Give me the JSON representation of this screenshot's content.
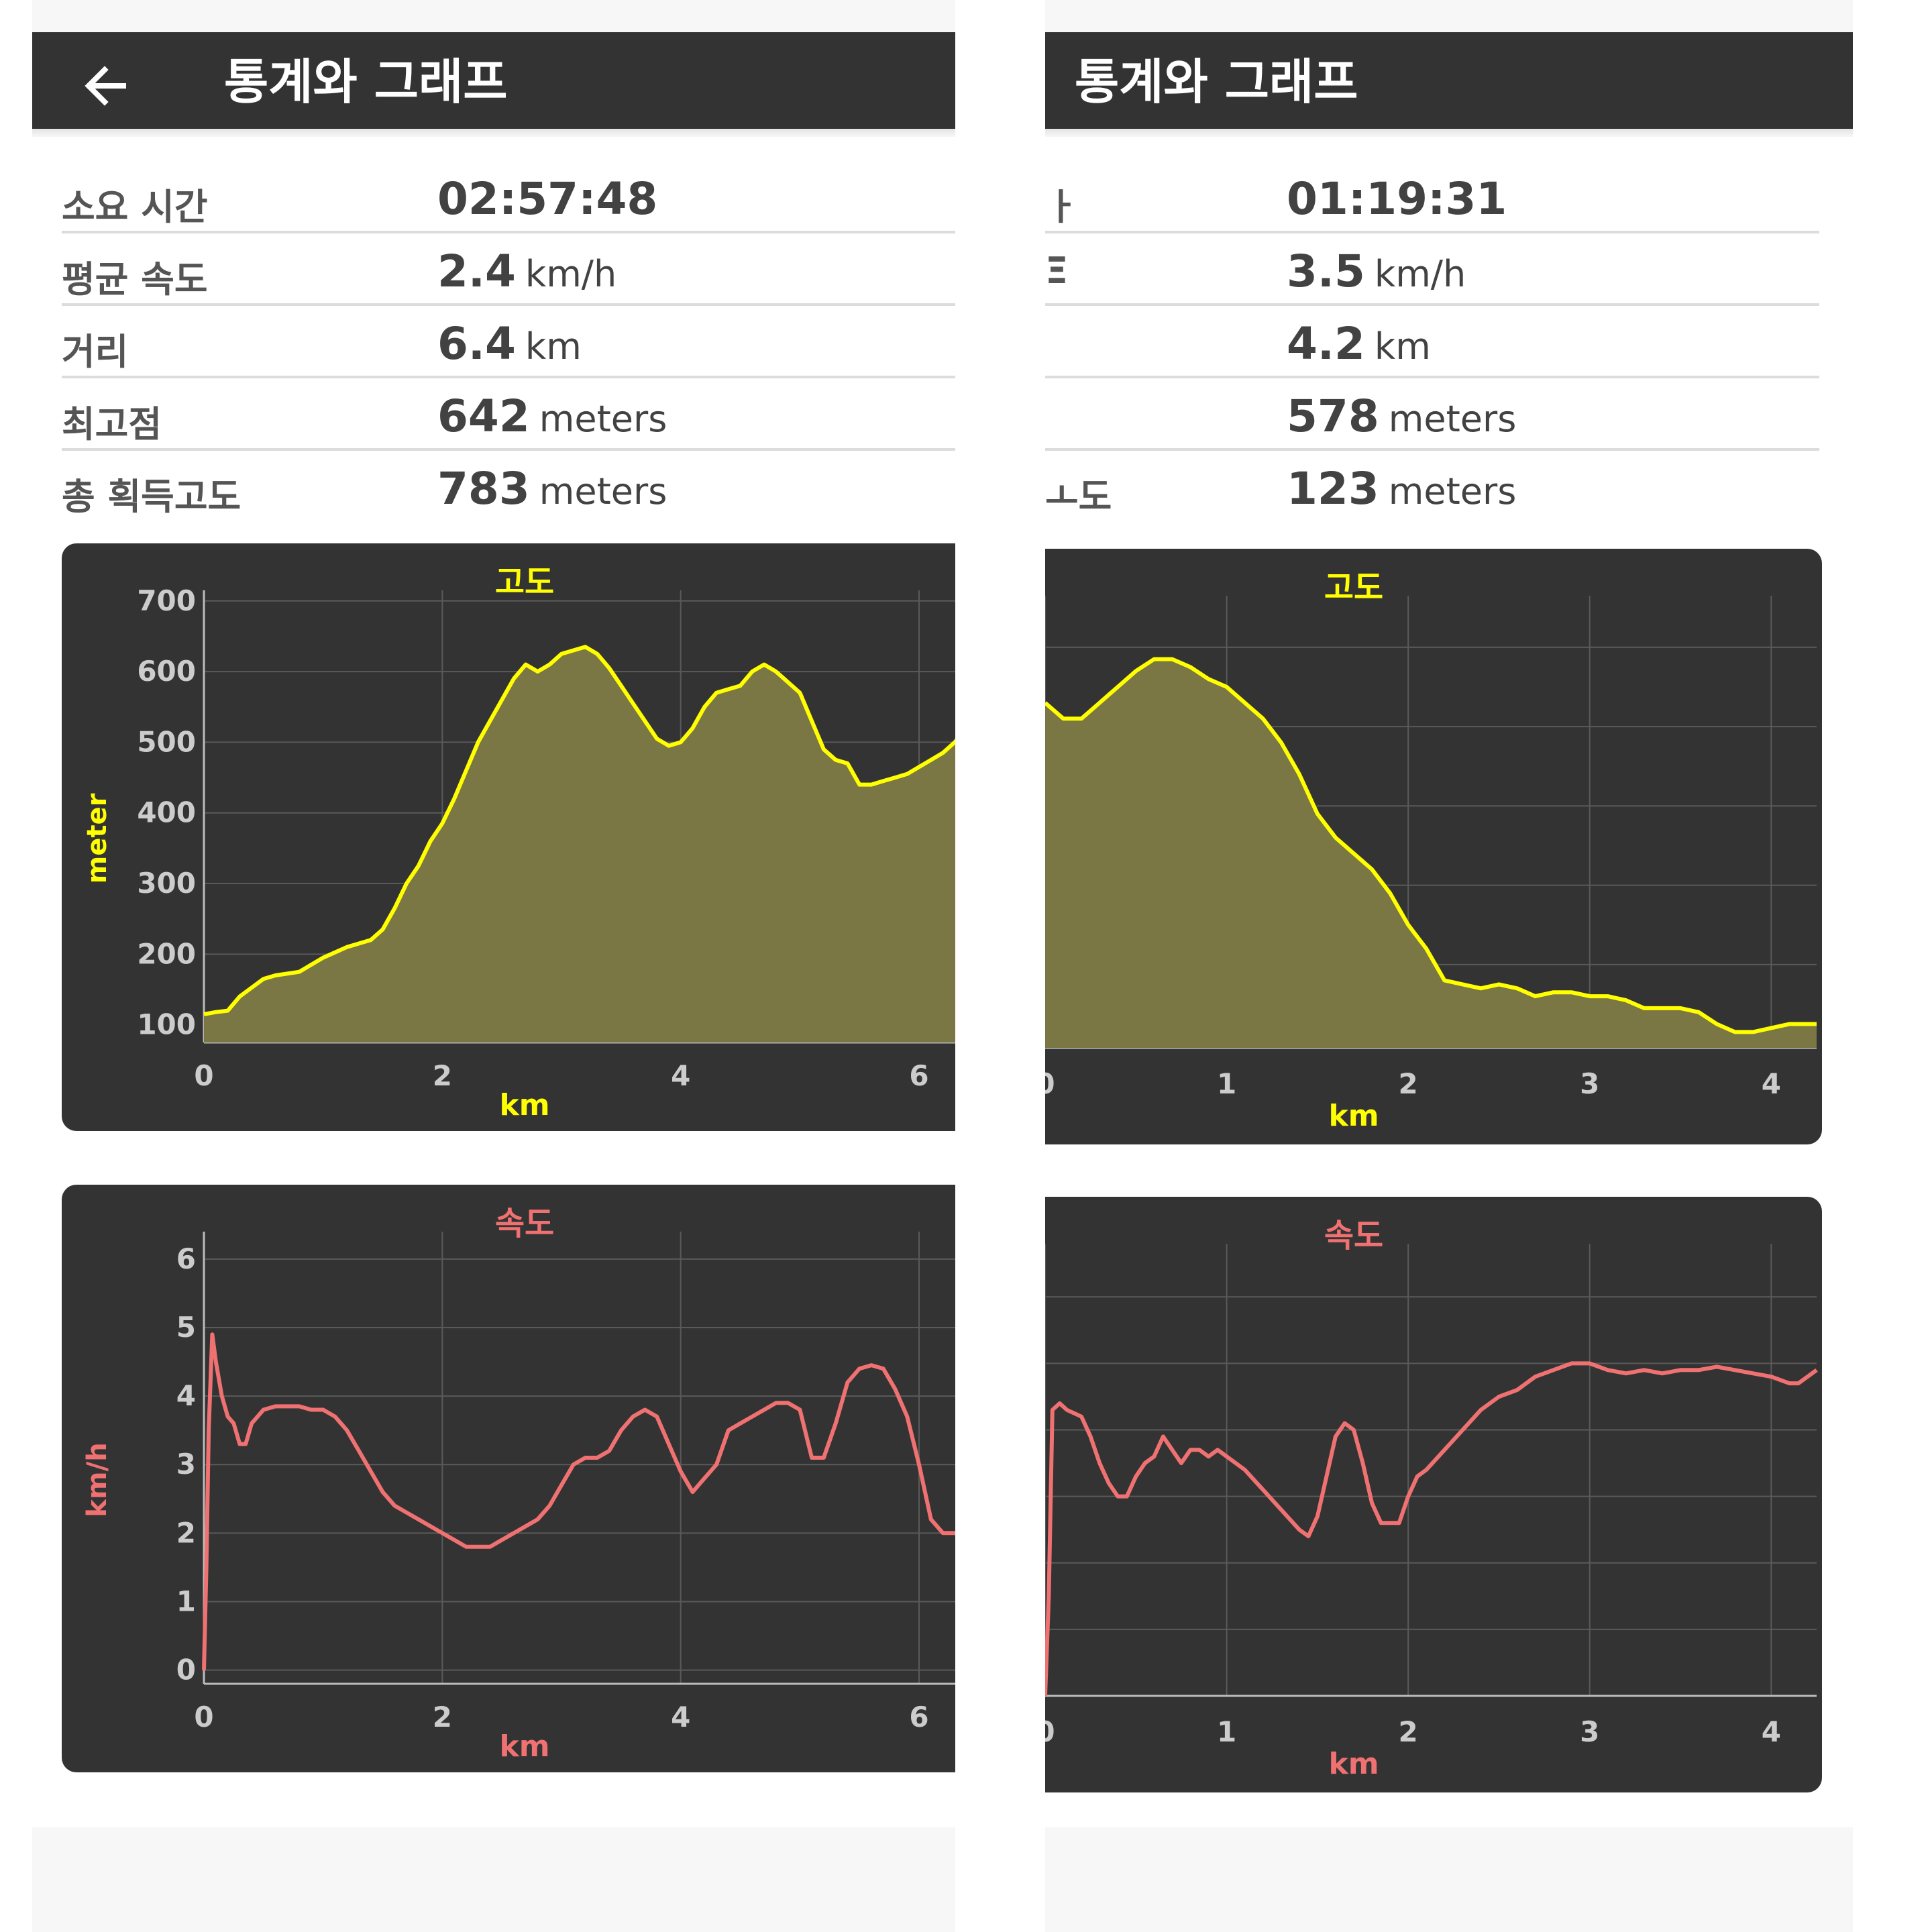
{
  "colors": {
    "appbar": "#333333",
    "chart_bg": "#333333",
    "altitude": "#ffff00",
    "speed": "#f07171",
    "grid": "#5a5a5a",
    "tick_label": "#cccccc"
  },
  "screens": [
    {
      "header": {
        "title": "통계와 그래프",
        "back_icon": "arrow-left-icon"
      },
      "stats": [
        {
          "label": "소요 시간",
          "value": "02:57:48",
          "unit": ""
        },
        {
          "label": "평균 속도",
          "value": "2.4",
          "unit": "km/h"
        },
        {
          "label": "거리",
          "value": "6.4",
          "unit": "km"
        },
        {
          "label": "최고점",
          "value": "642",
          "unit": "meters"
        },
        {
          "label": "총 획득고도",
          "value": "783",
          "unit": "meters"
        }
      ]
    },
    {
      "header": {
        "title": "통계와 그래프"
      },
      "stats": [
        {
          "label": "ㅏ",
          "value": "01:19:31",
          "unit": ""
        },
        {
          "label": "Ξ",
          "value": "3.5",
          "unit": "km/h"
        },
        {
          "label": "",
          "value": "4.2",
          "unit": "km"
        },
        {
          "label": "",
          "value": "578",
          "unit": "meters"
        },
        {
          "label": "ㅗ도",
          "value": "123",
          "unit": "meters"
        }
      ]
    }
  ],
  "chart_data": [
    {
      "type": "area",
      "title": "고도",
      "xlabel": "km",
      "ylabel": "meter",
      "xlim": [
        0,
        6.45
      ],
      "ylim": [
        75,
        715
      ],
      "x_ticks": [
        0,
        2,
        4,
        6
      ],
      "y_ticks": [
        100,
        200,
        300,
        400,
        500,
        600,
        700
      ],
      "grid": true,
      "series": [
        {
          "x": [
            0,
            0.1,
            0.2,
            0.3,
            0.5,
            0.6,
            0.8,
            1.0,
            1.2,
            1.4,
            1.5,
            1.6,
            1.7,
            1.8,
            1.9,
            2.0,
            2.1,
            2.2,
            2.3,
            2.4,
            2.5,
            2.6,
            2.7,
            2.8,
            2.9,
            3.0,
            3.1,
            3.2,
            3.3,
            3.4,
            3.5,
            3.6,
            3.7,
            3.8,
            3.9,
            4.0,
            4.1,
            4.2,
            4.3,
            4.4,
            4.5,
            4.6,
            4.7,
            4.8,
            4.9,
            5.0,
            5.1,
            5.2,
            5.3,
            5.4,
            5.5,
            5.6,
            5.7,
            5.8,
            5.9,
            6.0,
            6.1,
            6.2,
            6.3,
            6.45
          ],
          "y": [
            115,
            118,
            120,
            140,
            165,
            170,
            175,
            195,
            210,
            220,
            235,
            265,
            300,
            325,
            360,
            385,
            420,
            460,
            500,
            530,
            560,
            590,
            610,
            600,
            610,
            625,
            630,
            635,
            625,
            605,
            580,
            555,
            530,
            505,
            495,
            500,
            520,
            550,
            570,
            575,
            580,
            600,
            610,
            600,
            585,
            570,
            530,
            490,
            475,
            470,
            440,
            440,
            445,
            450,
            455,
            465,
            475,
            485,
            500,
            530
          ]
        }
      ]
    },
    {
      "type": "line",
      "title": "속도",
      "xlabel": "km",
      "ylabel": "km/h",
      "xlim": [
        0,
        6.45
      ],
      "ylim": [
        -0.2,
        6.4
      ],
      "x_ticks": [
        0,
        2,
        4,
        6
      ],
      "y_ticks": [
        0,
        1,
        2,
        3,
        4,
        5,
        6
      ],
      "grid": true,
      "series": [
        {
          "x": [
            0,
            0.02,
            0.04,
            0.07,
            0.1,
            0.15,
            0.2,
            0.25,
            0.3,
            0.35,
            0.4,
            0.5,
            0.6,
            0.7,
            0.8,
            0.9,
            1.0,
            1.1,
            1.2,
            1.3,
            1.4,
            1.5,
            1.6,
            1.7,
            1.8,
            1.9,
            2.0,
            2.1,
            2.2,
            2.3,
            2.4,
            2.5,
            2.6,
            2.7,
            2.8,
            2.9,
            3.0,
            3.1,
            3.2,
            3.3,
            3.4,
            3.5,
            3.6,
            3.7,
            3.8,
            3.9,
            4.0,
            4.1,
            4.2,
            4.3,
            4.4,
            4.5,
            4.6,
            4.7,
            4.8,
            4.9,
            5.0,
            5.1,
            5.2,
            5.3,
            5.4,
            5.5,
            5.6,
            5.7,
            5.8,
            5.9,
            6.0,
            6.1,
            6.2,
            6.3,
            6.45
          ],
          "y": [
            0,
            1.5,
            3.5,
            4.9,
            4.5,
            4.0,
            3.7,
            3.6,
            3.3,
            3.3,
            3.6,
            3.8,
            3.85,
            3.85,
            3.85,
            3.8,
            3.8,
            3.7,
            3.5,
            3.2,
            2.9,
            2.6,
            2.4,
            2.3,
            2.2,
            2.1,
            2.0,
            1.9,
            1.8,
            1.8,
            1.8,
            1.9,
            2.0,
            2.1,
            2.2,
            2.4,
            2.7,
            3.0,
            3.1,
            3.1,
            3.2,
            3.5,
            3.7,
            3.8,
            3.7,
            3.3,
            2.9,
            2.6,
            2.8,
            3.0,
            3.5,
            3.6,
            3.7,
            3.8,
            3.9,
            3.9,
            3.8,
            3.1,
            3.1,
            3.6,
            4.2,
            4.4,
            4.45,
            4.4,
            4.1,
            3.7,
            3.0,
            2.2,
            2.0,
            2.0,
            1.9
          ]
        }
      ]
    },
    {
      "type": "area",
      "title": "고도",
      "xlabel": "km",
      "xlim": [
        0,
        4.25
      ],
      "ylim": [
        -0.05,
        5.65
      ],
      "x_ticks": [
        0,
        1,
        2,
        3,
        4
      ],
      "y_ticks": [
        0,
        1,
        2,
        3,
        4,
        5
      ],
      "grid": true,
      "series": [
        {
          "x": [
            0,
            0.1,
            0.2,
            0.3,
            0.4,
            0.5,
            0.6,
            0.7,
            0.8,
            0.9,
            1.0,
            1.1,
            1.2,
            1.3,
            1.4,
            1.5,
            1.6,
            1.7,
            1.8,
            1.9,
            2.0,
            2.1,
            2.2,
            2.3,
            2.4,
            2.5,
            2.6,
            2.7,
            2.8,
            2.9,
            3.0,
            3.1,
            3.2,
            3.3,
            3.4,
            3.5,
            3.6,
            3.7,
            3.8,
            3.9,
            4.0,
            4.1,
            4.25
          ],
          "y": [
            4.3,
            4.1,
            4.1,
            4.3,
            4.5,
            4.7,
            4.85,
            4.85,
            4.75,
            4.6,
            4.5,
            4.3,
            4.1,
            3.8,
            3.4,
            2.9,
            2.6,
            2.4,
            2.2,
            1.9,
            1.5,
            1.2,
            0.8,
            0.75,
            0.7,
            0.75,
            0.7,
            0.6,
            0.65,
            0.65,
            0.6,
            0.6,
            0.55,
            0.45,
            0.45,
            0.45,
            0.4,
            0.25,
            0.15,
            0.15,
            0.2,
            0.25,
            0.25
          ]
        }
      ]
    },
    {
      "type": "line",
      "title": "속도",
      "xlabel": "km",
      "xlim": [
        0,
        4.25
      ],
      "ylim": [
        0,
        6.8
      ],
      "x_ticks": [
        0,
        1,
        2,
        3,
        4
      ],
      "y_ticks": [
        1,
        2,
        3,
        4,
        5,
        6
      ],
      "grid": true,
      "series": [
        {
          "x": [
            0,
            0.02,
            0.04,
            0.08,
            0.12,
            0.2,
            0.25,
            0.3,
            0.35,
            0.4,
            0.45,
            0.5,
            0.55,
            0.6,
            0.65,
            0.7,
            0.75,
            0.8,
            0.85,
            0.9,
            0.95,
            1.0,
            1.1,
            1.2,
            1.3,
            1.4,
            1.45,
            1.5,
            1.55,
            1.6,
            1.65,
            1.7,
            1.75,
            1.8,
            1.85,
            1.9,
            1.95,
            2.0,
            2.05,
            2.1,
            2.2,
            2.3,
            2.4,
            2.5,
            2.6,
            2.7,
            2.8,
            2.9,
            3.0,
            3.1,
            3.2,
            3.3,
            3.4,
            3.5,
            3.6,
            3.7,
            3.8,
            3.9,
            4.0,
            4.1,
            4.15,
            4.25
          ],
          "y": [
            0,
            1.5,
            4.3,
            4.4,
            4.3,
            4.2,
            3.9,
            3.5,
            3.2,
            3.0,
            3.0,
            3.3,
            3.5,
            3.6,
            3.9,
            3.7,
            3.5,
            3.7,
            3.7,
            3.6,
            3.7,
            3.6,
            3.4,
            3.1,
            2.8,
            2.5,
            2.4,
            2.7,
            3.3,
            3.9,
            4.1,
            4.0,
            3.5,
            2.9,
            2.6,
            2.6,
            2.6,
            3.0,
            3.3,
            3.4,
            3.7,
            4.0,
            4.3,
            4.5,
            4.6,
            4.8,
            4.9,
            5.0,
            5.0,
            4.9,
            4.85,
            4.9,
            4.85,
            4.9,
            4.9,
            4.95,
            4.9,
            4.85,
            4.8,
            4.7,
            4.7,
            4.9
          ]
        }
      ]
    }
  ]
}
